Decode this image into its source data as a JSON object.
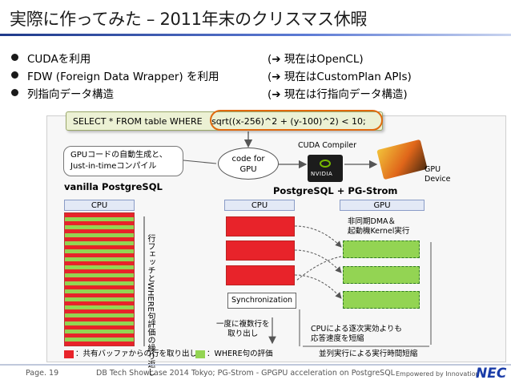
{
  "title": "実際に作ってみた – 2011年末のクリスマス休暇",
  "bullets": [
    {
      "text": "CUDAを利用",
      "right": "(➔ 現在はOpenCL)"
    },
    {
      "text": "FDW (Foreign Data Wrapper) を利用",
      "right": "(➔ 現在はCustomPlan APIs)"
    },
    {
      "text": "列指向データ構造",
      "right": "(➔ 現在は行指向データ構造)"
    }
  ],
  "diagram": {
    "sql": "SELECT * FROM table WHERE",
    "sql_expr": "sqrt((x-256)^2 + (y-100)^2) < 10;",
    "callout_line1": "GPUコードの自動生成と、",
    "callout_line2": "Just-in-timeコンパイル",
    "code_for_gpu_1": "code for",
    "code_for_gpu_2": "GPU",
    "cuda_compiler": "CUDA Compiler",
    "gpu_device_1": "GPU",
    "gpu_device_2": "Device",
    "vanilla": "vanilla PostgreSQL",
    "pgstrom": "PostgreSQL + PG-Strom",
    "cpu1": "CPU",
    "cpu2": "CPU",
    "gpu": "GPU",
    "vertical_note": "行フェッチとWHERE句評価の繰り返し",
    "async_1": "非同期DMA＆",
    "async_2": "起動機Kernel実行",
    "sync": "Synchronization",
    "batch_1": "一度に複数行を",
    "batch_2": "取り出し",
    "shorten_1": "CPUによる逐次実効よりも",
    "shorten_2": "応答速度を短縮",
    "parallel": "並列実行による実行時間短縮",
    "legend_red": "：共有バッファからの行を取り出し",
    "legend_green": "：WHERE句の評価"
  },
  "footer": {
    "page": "Page. 19",
    "event": "DB Tech Showcase 2014 Tokyo; PG-Strom - GPGPU acceleration on PostgreSQL",
    "tagline": "Empowered by Innovation",
    "logo": "NEC"
  },
  "colors": {
    "accent": "#1f3a8a",
    "red": "#e8232a",
    "green": "#93d453",
    "orange": "#e06a0f"
  }
}
